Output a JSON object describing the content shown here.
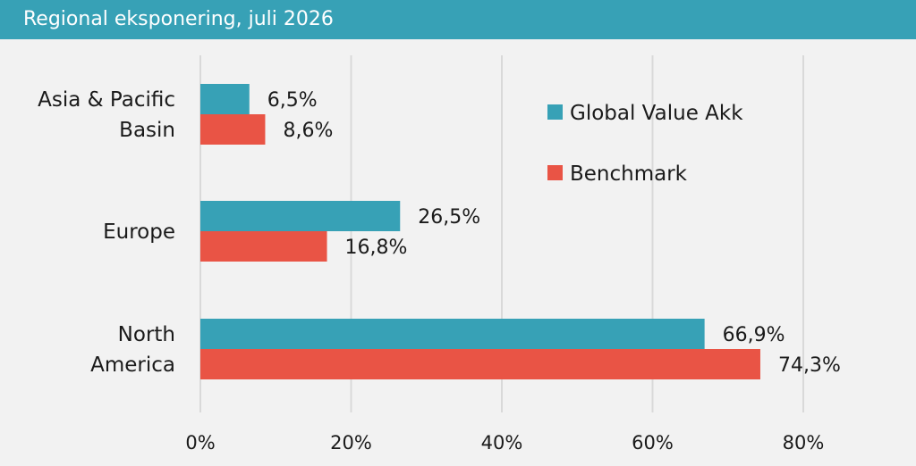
{
  "header": {
    "title": "Regional eksponering, juli 2026"
  },
  "colors": {
    "header_bg": "#37a1b6",
    "series_1": "#37a1b6",
    "series_2": "#e95445",
    "background": "#f2f2f2",
    "grid": "#d9d9d9"
  },
  "chart_data": {
    "type": "bar",
    "orientation": "horizontal",
    "title": "Regional eksponering, juli 2026",
    "categories": [
      [
        "Asia & Pacific",
        "Basin"
      ],
      [
        "Europe"
      ],
      [
        "North",
        "America"
      ]
    ],
    "series": [
      {
        "name": "Global Value Akk",
        "color": "#37a1b6",
        "values": [
          6.5,
          26.5,
          66.9
        ],
        "labels": [
          "6,5%",
          "26,5%",
          "66,9%"
        ]
      },
      {
        "name": "Benchmark",
        "color": "#e95445",
        "values": [
          8.6,
          16.8,
          74.3
        ],
        "labels": [
          "8,6%",
          "16,8%",
          "74,3%"
        ]
      }
    ],
    "xlim": [
      0,
      80
    ],
    "xticks": [
      0,
      20,
      40,
      60,
      80
    ],
    "xtick_labels": [
      "0%",
      "20%",
      "40%",
      "60%",
      "80%"
    ],
    "grid": true,
    "legend_position": "top-right"
  }
}
